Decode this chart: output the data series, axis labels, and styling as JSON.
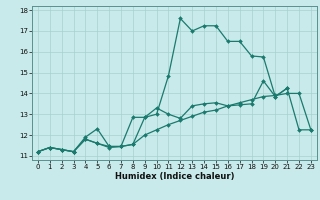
{
  "title": "",
  "xlabel": "Humidex (Indice chaleur)",
  "background_color": "#c8eaea",
  "grid_color": "#a8d0ce",
  "line_color": "#1a7a6e",
  "xlim": [
    -0.5,
    23.5
  ],
  "ylim": [
    10.8,
    18.2
  ],
  "yticks": [
    11,
    12,
    13,
    14,
    15,
    16,
    17,
    18
  ],
  "xticks": [
    0,
    1,
    2,
    3,
    4,
    5,
    6,
    7,
    8,
    9,
    10,
    11,
    12,
    13,
    14,
    15,
    16,
    17,
    18,
    19,
    20,
    21,
    22,
    23
  ],
  "line1_y": [
    11.2,
    11.4,
    11.3,
    11.2,
    11.8,
    11.6,
    11.4,
    11.45,
    11.55,
    12.0,
    12.25,
    12.5,
    12.7,
    12.9,
    13.1,
    13.2,
    13.4,
    13.55,
    13.7,
    13.85,
    13.9,
    14.0,
    14.0,
    12.25
  ],
  "line2_y": [
    11.2,
    11.4,
    11.3,
    11.2,
    11.9,
    12.3,
    11.45,
    11.45,
    12.85,
    12.85,
    13.0,
    14.85,
    17.6,
    17.0,
    17.25,
    17.25,
    16.5,
    16.5,
    15.8,
    15.75,
    13.85,
    14.25,
    null,
    null
  ],
  "line3_y": [
    11.2,
    11.4,
    11.3,
    11.2,
    11.8,
    11.6,
    11.45,
    11.45,
    11.55,
    12.85,
    13.3,
    13.0,
    12.8,
    13.4,
    13.5,
    13.55,
    13.4,
    13.45,
    13.5,
    14.6,
    13.85,
    14.25,
    12.25,
    12.25
  ]
}
